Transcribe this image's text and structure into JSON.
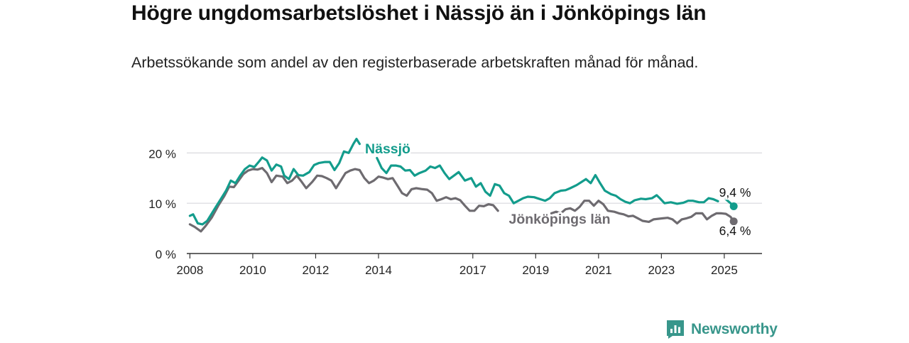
{
  "page": {
    "title": "Högre ungdomsarbetslöshet i Nässjö än i Jönköpings län",
    "subtitle": "Arbetssökande som andel av den registerbaserade arbetskraften månad för månad.",
    "brand": "Newsworthy"
  },
  "colors": {
    "nassjo": "#139c8c",
    "lan": "#6e6b70",
    "grid": "#d9d9dd",
    "axis": "#333333",
    "brand": "#38968b"
  },
  "chart_data": {
    "type": "line",
    "title": "Högre ungdomsarbetslöshet i Nässjö än i Jönköpings län",
    "subtitle": "Arbetssökande som andel av den registerbaserade arbetskraften månad för månad.",
    "xlabel": "",
    "ylabel": "",
    "y_unit": "%",
    "ylim": [
      0,
      25
    ],
    "yticks": [
      0,
      10,
      20
    ],
    "ytick_labels": [
      "0 %",
      "10 %",
      "20 %"
    ],
    "xlim": [
      2007.9,
      2026.2
    ],
    "xticks": [
      2008,
      2010,
      2012,
      2014,
      2017,
      2019,
      2021,
      2023,
      2025
    ],
    "xtick_labels": [
      "2008",
      "2010",
      "2012",
      "2014",
      "2017",
      "2019",
      "2021",
      "2023",
      "2025"
    ],
    "grid": true,
    "legend": "direct labels on lines",
    "series": [
      {
        "name": "Nässjö",
        "color": "#139c8c",
        "end_label": "9,4 %",
        "points": [
          [
            2008.0,
            7.5
          ],
          [
            2008.1,
            7.8
          ],
          [
            2008.25,
            6.0
          ],
          [
            2008.4,
            5.8
          ],
          [
            2008.55,
            6.5
          ],
          [
            2008.7,
            8.0
          ],
          [
            2008.85,
            9.5
          ],
          [
            2009.0,
            11.0
          ],
          [
            2009.15,
            12.5
          ],
          [
            2009.3,
            14.5
          ],
          [
            2009.45,
            14.0
          ],
          [
            2009.6,
            15.5
          ],
          [
            2009.75,
            16.8
          ],
          [
            2009.9,
            17.5
          ],
          [
            2010.05,
            17.2
          ],
          [
            2010.2,
            18.3
          ],
          [
            2010.3,
            19.1
          ],
          [
            2010.45,
            18.5
          ],
          [
            2010.6,
            16.5
          ],
          [
            2010.75,
            17.7
          ],
          [
            2010.9,
            17.3
          ],
          [
            2011.0,
            15.5
          ],
          [
            2011.15,
            14.8
          ],
          [
            2011.3,
            16.8
          ],
          [
            2011.45,
            15.6
          ],
          [
            2011.6,
            15.5
          ],
          [
            2011.8,
            16.2
          ],
          [
            2011.95,
            17.6
          ],
          [
            2012.1,
            18.0
          ],
          [
            2012.3,
            18.2
          ],
          [
            2012.45,
            18.2
          ],
          [
            2012.6,
            16.6
          ],
          [
            2012.75,
            18.0
          ],
          [
            2012.9,
            20.3
          ],
          [
            2013.05,
            20.0
          ],
          [
            2013.2,
            21.8
          ],
          [
            2013.3,
            22.8
          ],
          [
            2013.4,
            21.8
          ]
        ],
        "points_after_label": [
          [
            2013.95,
            19.0
          ],
          [
            2014.1,
            17.0
          ],
          [
            2014.25,
            16.0
          ],
          [
            2014.4,
            17.5
          ],
          [
            2014.55,
            17.5
          ],
          [
            2014.7,
            17.3
          ],
          [
            2014.85,
            16.5
          ],
          [
            2015.0,
            16.6
          ],
          [
            2015.15,
            15.5
          ],
          [
            2015.3,
            16.0
          ],
          [
            2015.5,
            16.5
          ],
          [
            2015.65,
            17.3
          ],
          [
            2015.8,
            17.0
          ],
          [
            2015.95,
            17.5
          ],
          [
            2016.1,
            16.0
          ],
          [
            2016.25,
            14.8
          ],
          [
            2016.4,
            15.5
          ],
          [
            2016.55,
            16.2
          ],
          [
            2016.75,
            14.5
          ],
          [
            2016.95,
            15.0
          ],
          [
            2017.1,
            13.3
          ],
          [
            2017.25,
            14.0
          ],
          [
            2017.4,
            12.3
          ],
          [
            2017.55,
            11.5
          ],
          [
            2017.7,
            13.8
          ],
          [
            2017.85,
            13.5
          ],
          [
            2018.0,
            12.0
          ],
          [
            2018.15,
            11.5
          ],
          [
            2018.3,
            10.0
          ],
          [
            2018.45,
            10.5
          ],
          [
            2018.6,
            11.0
          ],
          [
            2018.75,
            11.3
          ],
          [
            2018.95,
            11.2
          ],
          [
            2019.1,
            10.9
          ],
          [
            2019.3,
            10.5
          ],
          [
            2019.45,
            11.0
          ],
          [
            2019.6,
            12.0
          ],
          [
            2019.8,
            12.5
          ],
          [
            2019.95,
            12.6
          ],
          [
            2020.1,
            13.0
          ],
          [
            2020.3,
            13.6
          ],
          [
            2020.45,
            14.2
          ],
          [
            2020.6,
            14.8
          ],
          [
            2020.75,
            14.0
          ],
          [
            2020.9,
            15.6
          ],
          [
            2021.05,
            14.0
          ],
          [
            2021.2,
            12.5
          ],
          [
            2021.4,
            11.8
          ],
          [
            2021.55,
            11.5
          ],
          [
            2021.7,
            10.8
          ],
          [
            2021.85,
            10.3
          ],
          [
            2022.0,
            10.0
          ],
          [
            2022.15,
            10.6
          ],
          [
            2022.35,
            10.9
          ],
          [
            2022.5,
            10.8
          ],
          [
            2022.7,
            11.0
          ],
          [
            2022.85,
            11.6
          ],
          [
            2022.95,
            11.0
          ],
          [
            2023.1,
            10.0
          ],
          [
            2023.3,
            10.2
          ],
          [
            2023.5,
            9.9
          ],
          [
            2023.7,
            10.1
          ],
          [
            2023.85,
            10.5
          ],
          [
            2024.0,
            10.5
          ],
          [
            2024.2,
            10.2
          ],
          [
            2024.35,
            10.2
          ],
          [
            2024.5,
            11.0
          ],
          [
            2024.65,
            10.8
          ],
          [
            2024.8,
            10.4
          ]
        ],
        "points_tail": [
          [
            2025.05,
            10.8
          ],
          [
            2025.2,
            10.0
          ],
          [
            2025.3,
            9.4
          ]
        ]
      },
      {
        "name": "Jönköpings län",
        "color": "#6e6b70",
        "end_label": "6,4 %",
        "points": [
          [
            2008.0,
            5.8
          ],
          [
            2008.15,
            5.3
          ],
          [
            2008.35,
            4.4
          ],
          [
            2008.5,
            5.5
          ],
          [
            2008.7,
            7.2
          ],
          [
            2008.9,
            9.5
          ],
          [
            2009.1,
            11.5
          ],
          [
            2009.25,
            13.3
          ],
          [
            2009.4,
            13.2
          ],
          [
            2009.55,
            14.5
          ],
          [
            2009.7,
            15.8
          ],
          [
            2009.85,
            16.5
          ],
          [
            2010.0,
            16.8
          ],
          [
            2010.15,
            16.7
          ],
          [
            2010.3,
            17.0
          ],
          [
            2010.45,
            16.0
          ],
          [
            2010.6,
            14.2
          ],
          [
            2010.75,
            15.5
          ],
          [
            2010.95,
            15.3
          ],
          [
            2011.1,
            14.0
          ],
          [
            2011.25,
            14.5
          ],
          [
            2011.4,
            15.5
          ],
          [
            2011.55,
            14.3
          ],
          [
            2011.7,
            13.0
          ],
          [
            2011.9,
            14.3
          ],
          [
            2012.05,
            15.5
          ],
          [
            2012.2,
            15.4
          ],
          [
            2012.35,
            15.0
          ],
          [
            2012.5,
            14.5
          ],
          [
            2012.65,
            13.0
          ],
          [
            2012.8,
            14.5
          ],
          [
            2012.95,
            16.0
          ],
          [
            2013.1,
            16.5
          ],
          [
            2013.25,
            16.8
          ],
          [
            2013.4,
            16.6
          ],
          [
            2013.55,
            15.0
          ],
          [
            2013.7,
            14.0
          ],
          [
            2013.85,
            14.5
          ],
          [
            2014.0,
            15.3
          ],
          [
            2014.15,
            15.1
          ],
          [
            2014.3,
            14.8
          ],
          [
            2014.45,
            15.0
          ],
          [
            2014.6,
            13.5
          ],
          [
            2014.75,
            12.0
          ],
          [
            2014.9,
            11.5
          ],
          [
            2015.05,
            12.8
          ],
          [
            2015.2,
            13.0
          ],
          [
            2015.4,
            12.8
          ],
          [
            2015.55,
            12.7
          ],
          [
            2015.7,
            12.0
          ],
          [
            2015.85,
            10.5
          ],
          [
            2016.0,
            10.8
          ],
          [
            2016.15,
            11.2
          ],
          [
            2016.3,
            10.8
          ],
          [
            2016.45,
            11.0
          ],
          [
            2016.6,
            10.6
          ],
          [
            2016.75,
            9.5
          ],
          [
            2016.9,
            8.5
          ],
          [
            2017.05,
            8.5
          ],
          [
            2017.2,
            9.5
          ],
          [
            2017.35,
            9.4
          ],
          [
            2017.5,
            9.8
          ],
          [
            2017.65,
            9.6
          ],
          [
            2017.8,
            8.5
          ]
        ],
        "points_after_label": [
          [
            2019.5,
            8.0
          ],
          [
            2019.65,
            8.3
          ],
          [
            2019.8,
            8.0
          ],
          [
            2019.95,
            8.8
          ],
          [
            2020.1,
            9.0
          ],
          [
            2020.25,
            8.5
          ],
          [
            2020.4,
            9.3
          ],
          [
            2020.55,
            10.5
          ],
          [
            2020.7,
            10.5
          ],
          [
            2020.85,
            9.5
          ],
          [
            2021.0,
            10.5
          ],
          [
            2021.15,
            9.8
          ],
          [
            2021.3,
            8.5
          ],
          [
            2021.5,
            8.3
          ],
          [
            2021.65,
            8.0
          ],
          [
            2021.8,
            7.8
          ],
          [
            2021.95,
            7.4
          ],
          [
            2022.1,
            7.5
          ],
          [
            2022.25,
            7.0
          ],
          [
            2022.4,
            6.5
          ],
          [
            2022.6,
            6.3
          ],
          [
            2022.75,
            6.8
          ],
          [
            2022.9,
            6.9
          ],
          [
            2023.05,
            7.0
          ],
          [
            2023.2,
            7.1
          ],
          [
            2023.35,
            6.8
          ],
          [
            2023.5,
            6.0
          ],
          [
            2023.65,
            6.8
          ],
          [
            2023.8,
            7.0
          ],
          [
            2023.95,
            7.3
          ],
          [
            2024.1,
            8.0
          ],
          [
            2024.3,
            8.0
          ],
          [
            2024.45,
            6.8
          ],
          [
            2024.6,
            7.5
          ],
          [
            2024.75,
            8.0
          ],
          [
            2024.9,
            8.0
          ],
          [
            2025.05,
            7.9
          ],
          [
            2025.2,
            7.3
          ],
          [
            2025.3,
            6.4
          ]
        ]
      }
    ],
    "annotations": [
      {
        "text": "Nässjö",
        "series": "Nässjö"
      },
      {
        "text": "Jönköpings län",
        "series": "Jönköpings län"
      }
    ]
  }
}
